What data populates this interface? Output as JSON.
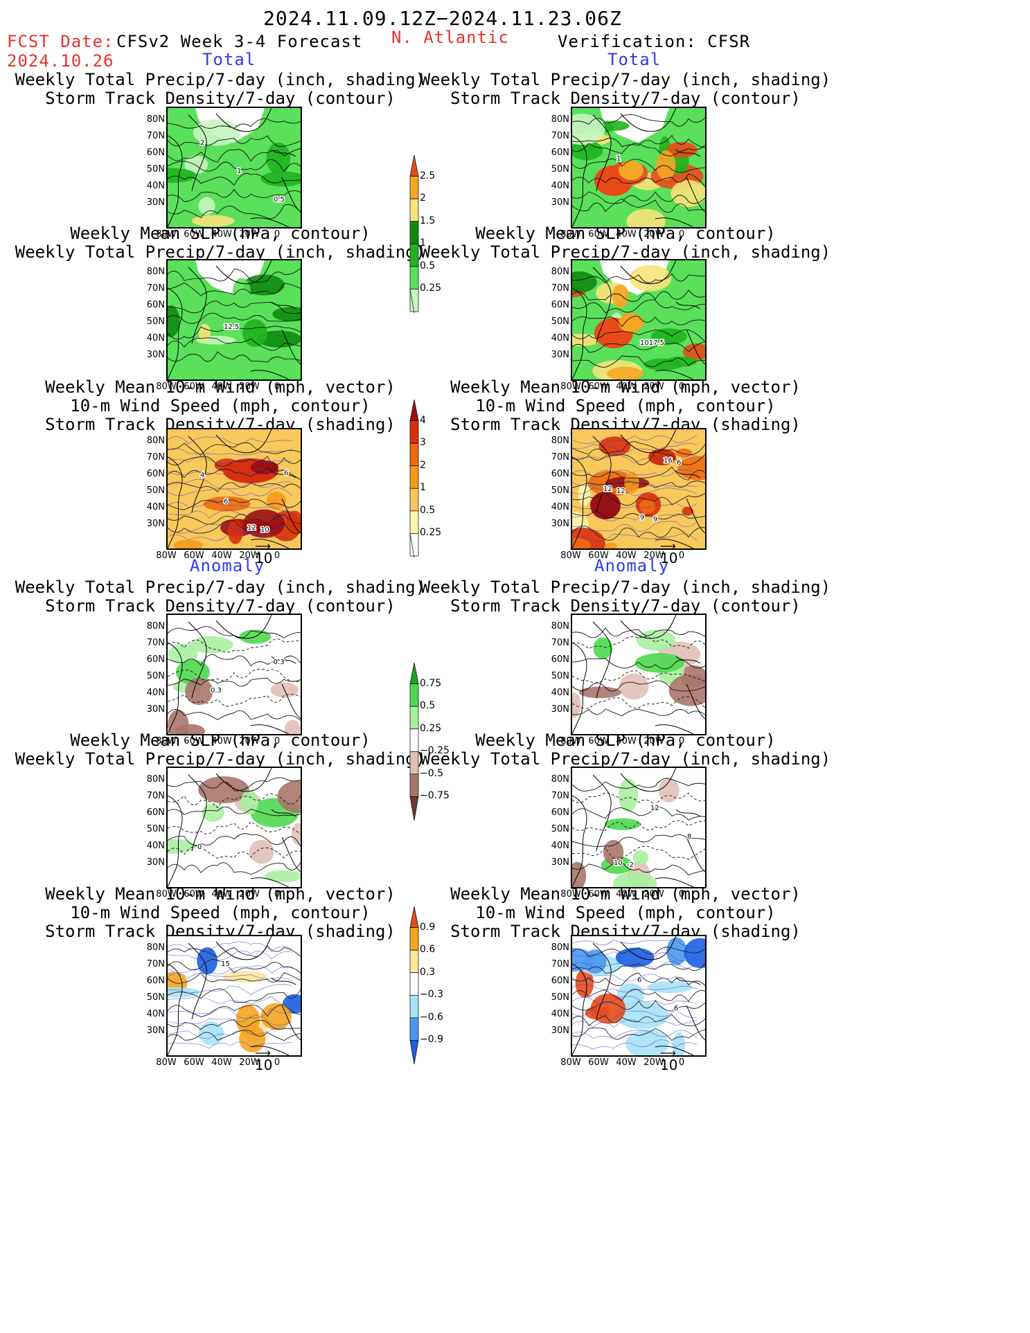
{
  "header": {
    "period": "2024.11.09.12Z−2024.11.23.06Z",
    "fcst_label": "FCST Date:",
    "fcst_date": "2024.10.26",
    "model": "CFSv2 Week 3-4 Forecast",
    "region": "N. Atlantic",
    "verification": "Verification: CFSR"
  },
  "sections": {
    "total": "Total",
    "anomaly": "Anomaly"
  },
  "titles": {
    "precip_track": [
      "Weekly Total Precip/7-day (inch, shading)",
      "Storm Track Density/7-day (contour)"
    ],
    "slp_precip": [
      "Weekly Mean SLP (hPa, contour)",
      "Weekly Total Precip/7-day (inch, shading)"
    ],
    "wind_track": [
      "Weekly Mean 10-m Wind (mph, vector)",
      "10-m Wind Speed (mph, contour)",
      "Storm Track Density/7-day (shading)"
    ]
  },
  "axes": {
    "lat": [
      "80N",
      "70N",
      "60N",
      "50N",
      "40N",
      "30N"
    ],
    "lon": [
      "80W",
      "60W",
      "40W",
      "20W",
      "0"
    ]
  },
  "contour_labels": {
    "fc_total_precip": [
      "2",
      "1",
      "0.5"
    ],
    "ob_total_precip": [
      "1"
    ],
    "fc_total_slp": [
      "12.5"
    ],
    "ob_total_slp": [
      "1017.5"
    ],
    "fc_total_wind": [
      "12",
      "6",
      "6",
      "10",
      "4"
    ],
    "ob_total_wind": [
      "16",
      "12",
      "9",
      "6",
      "12",
      "9"
    ],
    "fc_anom_precip": [
      "-0.3",
      "0.3"
    ],
    "fc_anom_slp": [
      "0"
    ],
    "fc_anom_wind": [
      "15"
    ],
    "ob_anom_slp": [
      "10",
      "12",
      "8",
      "-2"
    ],
    "ob_anom_wind": [
      "6",
      "6"
    ]
  },
  "colorbars": {
    "total_precip": [
      "2.5",
      "2",
      "1.5",
      "1",
      "0.5",
      "0.25"
    ],
    "total_track": [
      "4",
      "3",
      "2",
      "1",
      "0.5",
      "0.25"
    ],
    "anom_precip": [
      "0.75",
      "0.5",
      "0.25",
      "−0.25",
      "−0.5",
      "−0.75"
    ],
    "anom_track": [
      "0.9",
      "0.6",
      "0.3",
      "−0.3",
      "−0.6",
      "−0.9"
    ]
  },
  "vector_ref": "10",
  "colors": {
    "title_red": "#e8322d",
    "section_blue": "#2f3bf0",
    "precip": [
      "#c8f5c0",
      "#5ae05a",
      "#1fb41f",
      "#0e8a0e",
      "#f7e37a",
      "#f5a623",
      "#e84a1a"
    ],
    "track": [
      "#fff6b0",
      "#f8c85a",
      "#f59a1c",
      "#ee6a10",
      "#d8300c",
      "#9c0e10"
    ],
    "anom_precip": [
      "#6b3b30",
      "#a8766a",
      "#e0c0b6",
      "#ffffff",
      "#a8f0a0",
      "#4fd84f",
      "#1aa81a"
    ],
    "anom_track": [
      "#1a5fe0",
      "#4a98f0",
      "#a6e2f8",
      "#ffffff",
      "#fbe69a",
      "#f5a420",
      "#e84a1a"
    ]
  }
}
